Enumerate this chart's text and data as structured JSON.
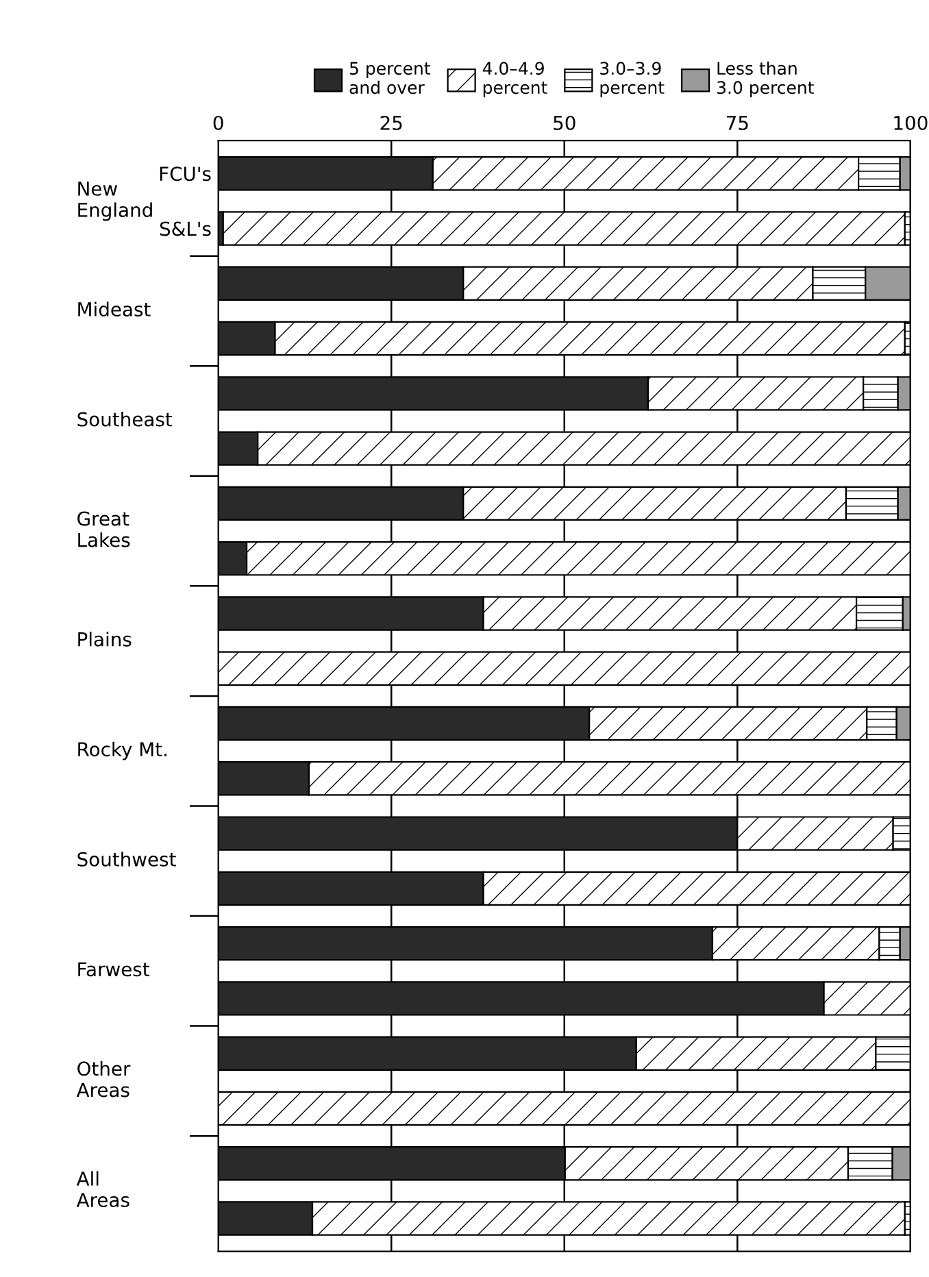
{
  "chart_data": {
    "type": "bar",
    "orientation": "horizontal",
    "stacked": true,
    "categories": [
      "FCU's",
      "S&L's",
      null,
      null,
      null,
      null,
      null,
      null,
      null,
      null,
      null,
      null,
      null,
      null,
      null,
      null,
      null,
      null,
      null,
      null
    ],
    "series": [
      {
        "name": "5 percent\nand over",
        "color": "#2a2a2a",
        "values": [
          31,
          0.7,
          35.4,
          8.2,
          62.1,
          5.7,
          35.4,
          4.1,
          38.3,
          0,
          53.6,
          13.1,
          75,
          38.3,
          71.4,
          87.5,
          60.4,
          0,
          50.1,
          13.6
        ]
      },
      {
        "name": "4.0–4.9\npercent",
        "color": "#000000",
        "values": [
          61.5,
          98.5,
          50.5,
          91,
          31.1,
          94.3,
          55.3,
          95.9,
          53.9,
          100,
          40.1,
          86.9,
          22.5,
          61.7,
          24.1,
          12.5,
          34.6,
          100,
          40.9,
          85.6
        ]
      },
      {
        "name": "3.0–3.9\npercent",
        "color": "#000000",
        "values": [
          6,
          0.8,
          7.6,
          0.8,
          5,
          0,
          7.5,
          0,
          6.7,
          0,
          4.3,
          0,
          2.5,
          0,
          3,
          0,
          5,
          0,
          6.4,
          0.8
        ]
      },
      {
        "name": "Less than\n3.0 percent",
        "color": "#9a9a9a",
        "values": [
          1.5,
          0,
          6.5,
          0,
          1.8,
          0,
          1.8,
          0,
          1.1,
          0,
          2,
          0,
          0,
          0,
          1.5,
          0,
          0,
          0,
          2.6,
          0
        ]
      }
    ],
    "annotations": [
      "New\nEngland",
      "Mideast",
      "Southeast",
      "Great\nLakes",
      "Plains",
      "Rocky Mt.",
      "Southwest",
      "Farwest",
      "Other\nAreas",
      "All\nAreas"
    ],
    "xlim": [
      0,
      100
    ],
    "xticks": [
      0,
      25,
      50,
      75,
      100
    ],
    "grid": "x",
    "legend": "top"
  }
}
